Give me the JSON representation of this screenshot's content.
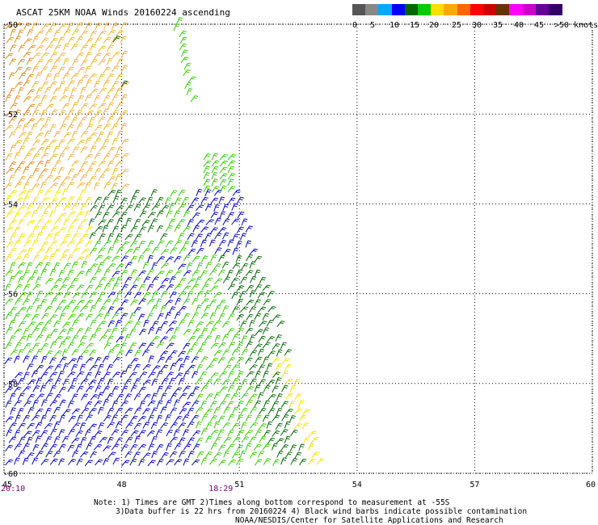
{
  "title": "ASCAT 25KM NOAA Winds 20160224 ascending",
  "legend": {
    "colors": [
      "#555555",
      "#888888",
      "#00aaff",
      "#0000ff",
      "#006600",
      "#00cc00",
      "#ffdd00",
      "#ffaa00",
      "#ff6600",
      "#ff0000",
      "#cc0000",
      "#663300",
      "#ff00ff",
      "#cc00cc",
      "#660099",
      "#330066"
    ],
    "tick_labels": [
      "0",
      "5",
      "10",
      "15",
      "20",
      "25",
      "30",
      "35",
      "40",
      "45",
      ">50 knots"
    ]
  },
  "axes": {
    "lat_labels": [
      "-50",
      "-52",
      "-54",
      "-56",
      "-58",
      "-60"
    ],
    "lon_labels": [
      "45",
      "48",
      "51",
      "54",
      "57",
      "60"
    ],
    "lat_range": [
      -60,
      -50
    ],
    "lon_range": [
      45,
      60
    ],
    "grid": true
  },
  "time_labels": [
    {
      "text": "20:10",
      "lon": 45
    },
    {
      "text": "18:29",
      "lon": 50.3
    }
  ],
  "notes": {
    "line1": "Note: 1) Times are GMT 2)Times along bottom correspond to measurement at -55S",
    "line2": "3)Data buffer is 22 hrs from 20160224 4) Black wind barbs indicate possible contamination",
    "line3": "NOAA/NESDIS/Center for Satellite Applications and Research"
  },
  "wind_colors": {
    "orange": "#e08a1a",
    "light_orange": "#f0b030",
    "yellow": "#f5e000",
    "light_green": "#33cc00",
    "dark_green": "#006600",
    "blue": "#0000cc",
    "black": "#000000"
  }
}
